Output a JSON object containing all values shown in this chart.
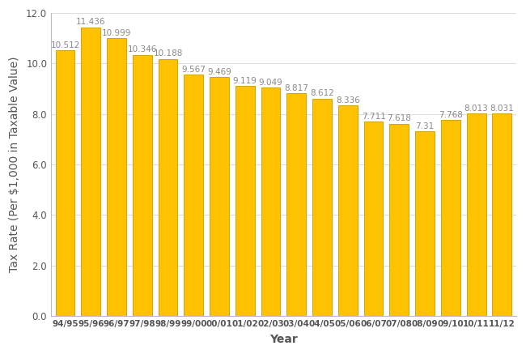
{
  "categories": [
    "94/95",
    "95/96",
    "96/97",
    "97/98",
    "98/99",
    "99/00",
    "00/01",
    "01/02",
    "02/03",
    "03/04",
    "04/05",
    "05/06",
    "06/07",
    "07/08",
    "08/09",
    "09/10",
    "10/11",
    "11/12"
  ],
  "values": [
    10.512,
    11.436,
    10.999,
    10.346,
    10.188,
    9.567,
    9.469,
    9.119,
    9.049,
    8.817,
    8.612,
    8.336,
    7.711,
    7.618,
    7.31,
    7.768,
    8.013,
    8.031
  ],
  "bar_color": "#FFC200",
  "bar_edge_color": "#CC9900",
  "background_color": "#ffffff",
  "xlabel": "Year",
  "ylabel": "Tax Rate (Per $1,000 in Taxable Value)",
  "ylim": [
    0,
    12.0
  ],
  "yticks": [
    0.0,
    2.0,
    4.0,
    6.0,
    8.0,
    10.0,
    12.0
  ],
  "label_fontsize": 7.5,
  "axis_label_fontsize": 10,
  "xlabel_fontweight": "bold",
  "label_color": "#888888",
  "tick_color": "#555555",
  "spine_color": "#bbbbbb",
  "grid_color": "#dddddd",
  "bar_width": 0.75
}
